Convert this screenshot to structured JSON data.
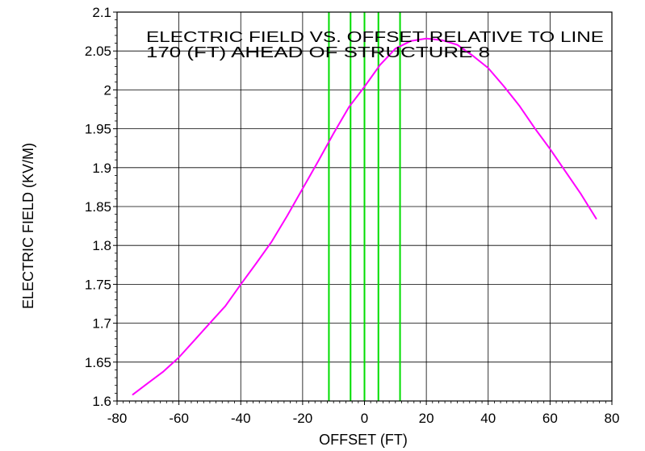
{
  "chart_data": {
    "type": "line",
    "title": "",
    "annotation_lines": [
      "ELECTRIC FIELD VS. OFFSET RELATIVE TO LINE",
      "170 (FT) AHEAD OF STRUCTURE 8"
    ],
    "xlabel": "OFFSET (FT)",
    "ylabel": "ELECTRIC FIELD (KV/M)",
    "xlim": [
      -80,
      80
    ],
    "ylim": [
      1.6,
      2.1
    ],
    "x_ticks": [
      -80,
      -60,
      -40,
      -20,
      0,
      20,
      40,
      60,
      80
    ],
    "x_tick_labels": [
      "-80",
      "-60",
      "-40",
      "-20",
      "0",
      "20",
      "40",
      "60",
      "80"
    ],
    "y_ticks": [
      1.6,
      1.65,
      1.7,
      1.75,
      1.8,
      1.85,
      1.9,
      1.95,
      2.0,
      2.05,
      2.1
    ],
    "y_tick_labels": [
      "1.6",
      "1.65",
      "1.7",
      "1.75",
      "1.8",
      "1.85",
      "1.9",
      "1.95",
      "2",
      "2.05",
      "2.1"
    ],
    "grid": true,
    "series": [
      {
        "color": "#ff00ff",
        "x": [
          -75,
          -70,
          -65,
          -60,
          -55,
          -50,
          -45,
          -40,
          -35,
          -30,
          -25,
          -20,
          -15,
          -10,
          -5,
          0,
          5,
          10,
          15,
          20,
          25,
          30,
          35,
          40,
          45,
          50,
          55,
          60,
          65,
          70,
          75
        ],
        "y": [
          1.608,
          1.623,
          1.638,
          1.656,
          1.678,
          1.7,
          1.722,
          1.75,
          1.777,
          1.805,
          1.838,
          1.873,
          1.908,
          1.944,
          1.978,
          2.004,
          2.032,
          2.053,
          2.063,
          2.066,
          2.064,
          2.058,
          2.044,
          2.028,
          2.005,
          1.98,
          1.951,
          1.924,
          1.895,
          1.866,
          1.834
        ]
      }
    ],
    "vertical_markers": {
      "color": "#00dd00",
      "x": [
        -11.5,
        -4.5,
        0,
        4.5,
        11.5
      ]
    }
  }
}
